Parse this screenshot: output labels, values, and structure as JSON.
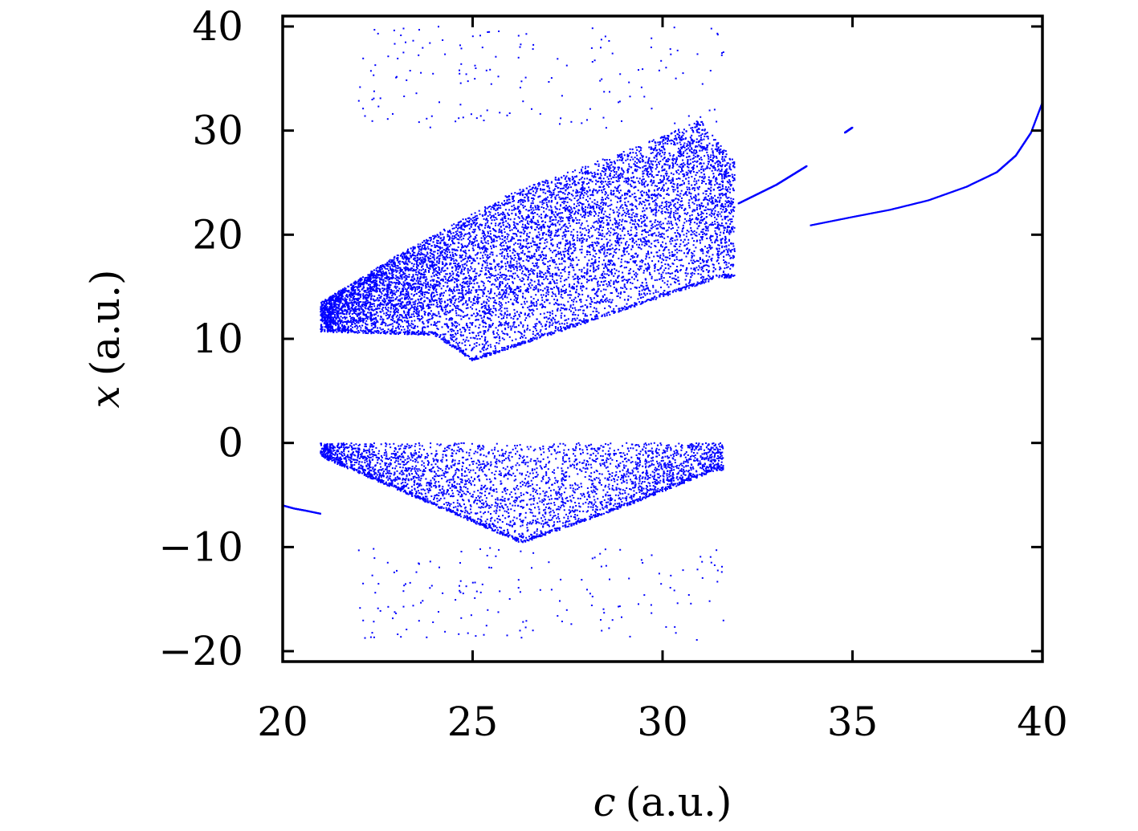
{
  "chart_data": {
    "type": "scatter",
    "title": "",
    "xlabel": "c (a.u.)",
    "ylabel": "x (a.u.)",
    "xlabel_var": "c",
    "ylabel_var": "x",
    "xlabel_unit": "(a.u.)",
    "ylabel_unit": "(a.u.)",
    "xlim": [
      20,
      40
    ],
    "ylim": [
      -21,
      41
    ],
    "x_ticks": [
      20,
      25,
      30,
      35,
      40
    ],
    "x_tick_labels": [
      "20",
      "25",
      "30",
      "35",
      "40"
    ],
    "y_ticks": [
      -20,
      -10,
      0,
      10,
      20,
      30,
      40
    ],
    "y_tick_labels": [
      "−20",
      "−10",
      "0",
      "10",
      "20",
      "30",
      "40"
    ],
    "grid": false,
    "legend": "none",
    "point_color": "#0000ff",
    "series": [
      {
        "values_description": "bifurcation diagram points",
        "stable_branches": [
          {
            "x": [
              20.0,
              20.3,
              20.6,
              21.0
            ],
            "y": [
              -6.0,
              -6.3,
              -6.5,
              -6.8
            ]
          },
          {
            "x": [
              33.9,
              35.0,
              36.0,
              37.0,
              38.0,
              38.8,
              39.3,
              39.7,
              40.0
            ],
            "y": [
              20.9,
              21.7,
              22.4,
              23.3,
              24.6,
              26.0,
              27.6,
              29.8,
              32.7
            ]
          },
          {
            "x": [
              32.0,
              32.5,
              33.0,
              33.4,
              33.8
            ],
            "y": [
              23.0,
              23.9,
              24.8,
              25.7,
              26.6
            ]
          },
          {
            "x": [
              34.8,
              35.0
            ],
            "y": [
              29.8,
              30.3
            ]
          }
        ],
        "chaotic_regions": [
          {
            "x_range": [
              21.0,
              31.9
            ],
            "y_min_curve": [
              [
                21.0,
                10.8
              ],
              [
                24.0,
                10.5
              ],
              [
                25.0,
                8.0
              ],
              [
                31.5,
                16.0
              ]
            ],
            "y_max_curve": [
              [
                21.0,
                13.5
              ],
              [
                23.0,
                18.0
              ],
              [
                26.0,
                24.0
              ],
              [
                29.0,
                28.0
              ],
              [
                31.0,
                31.0
              ],
              [
                31.9,
                27.0
              ]
            ]
          },
          {
            "x_range": [
              21.0,
              31.6
            ],
            "y_min_curve": [
              [
                21.0,
                -1.2
              ],
              [
                26.3,
                -9.5
              ],
              [
                29.0,
                -6.0
              ],
              [
                31.4,
                -2.5
              ]
            ],
            "y_max_curve": [
              [
                21.0,
                0.0
              ],
              [
                31.6,
                0.0
              ]
            ]
          }
        ]
      }
    ]
  }
}
